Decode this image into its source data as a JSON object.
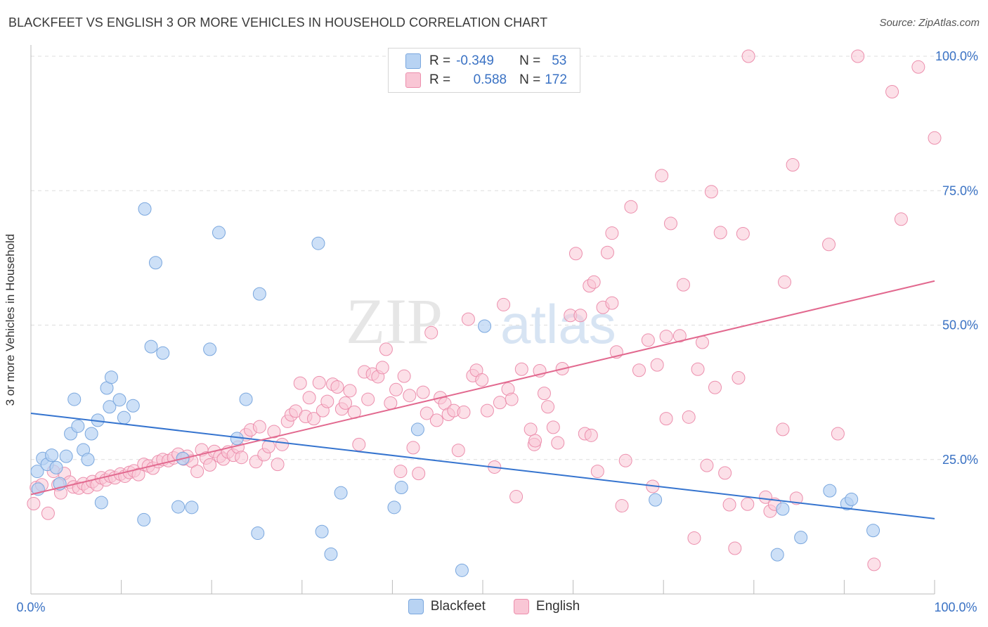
{
  "title": "BLACKFEET VS ENGLISH 3 OR MORE VEHICLES IN HOUSEHOLD CORRELATION CHART",
  "source": "Source: ZipAtlas.com",
  "watermark": {
    "zip": "ZIP",
    "atlas": "atlas"
  },
  "legend_stats": {
    "rows": [
      {
        "r_label": "R =",
        "r_value": "-0.349",
        "n_label": "N =",
        "n_value": "53"
      },
      {
        "r_label": "R =",
        "r_value": "0.588",
        "n_label": "N =",
        "n_value": "172"
      }
    ]
  },
  "colors": {
    "blackfeet_fill": "#b8d3f3",
    "blackfeet_stroke": "#7aa7de",
    "blackfeet_line": "#3574cf",
    "english_fill": "#f9c6d5",
    "english_stroke": "#ec8fad",
    "english_line": "#e2698f",
    "tick_label": "#3a72c4",
    "grid": "#dddddd"
  },
  "chart_data": {
    "type": "scatter",
    "title": "BLACKFEET VS ENGLISH 3 OR MORE VEHICLES IN HOUSEHOLD CORRELATION CHART",
    "xlabel": "",
    "ylabel": "3 or more Vehicles in Household",
    "xlim": [
      0,
      100
    ],
    "ylim": [
      0,
      103
    ],
    "x_tick_labels": [
      "0.0%",
      "100.0%"
    ],
    "y_ticks": [
      25,
      50,
      75,
      100
    ],
    "y_tick_labels": [
      "25.0%",
      "50.0%",
      "75.0%",
      "100.0%"
    ],
    "grid": true,
    "legend_position": "bottom",
    "series": [
      {
        "name": "Blackfeet",
        "trend": {
          "x": [
            0,
            100
          ],
          "y": [
            33.6,
            14.0
          ]
        },
        "points": [
          [
            0.8,
            19.5
          ],
          [
            0.7,
            22.8
          ],
          [
            1.3,
            25.2
          ],
          [
            1.8,
            24.1
          ],
          [
            2.3,
            25.8
          ],
          [
            2.8,
            23.5
          ],
          [
            3.2,
            20.5
          ],
          [
            3.9,
            25.6
          ],
          [
            4.4,
            29.8
          ],
          [
            4.8,
            36.2
          ],
          [
            5.2,
            31.2
          ],
          [
            5.8,
            26.8
          ],
          [
            6.3,
            25.0
          ],
          [
            6.7,
            29.8
          ],
          [
            7.4,
            32.3
          ],
          [
            7.8,
            17.0
          ],
          [
            8.4,
            38.3
          ],
          [
            8.9,
            40.3
          ],
          [
            8.7,
            34.8
          ],
          [
            9.8,
            36.1
          ],
          [
            10.3,
            32.8
          ],
          [
            11.3,
            35.0
          ],
          [
            12.5,
            13.8
          ],
          [
            12.6,
            71.6
          ],
          [
            13.3,
            46.0
          ],
          [
            13.8,
            61.6
          ],
          [
            14.6,
            44.8
          ],
          [
            16.3,
            16.2
          ],
          [
            16.8,
            25.2
          ],
          [
            17.8,
            16.1
          ],
          [
            20.8,
            67.2
          ],
          [
            19.8,
            45.5
          ],
          [
            22.8,
            28.9
          ],
          [
            23.8,
            36.2
          ],
          [
            25.3,
            55.8
          ],
          [
            25.1,
            11.3
          ],
          [
            31.8,
            65.2
          ],
          [
            32.2,
            11.6
          ],
          [
            33.2,
            7.4
          ],
          [
            34.3,
            18.8
          ],
          [
            40.2,
            16.1
          ],
          [
            41.0,
            19.8
          ],
          [
            42.8,
            30.6
          ],
          [
            47.7,
            4.4
          ],
          [
            50.2,
            49.8
          ],
          [
            69.1,
            17.5
          ],
          [
            83.2,
            15.8
          ],
          [
            82.6,
            7.3
          ],
          [
            85.2,
            10.5
          ],
          [
            88.4,
            19.2
          ],
          [
            90.3,
            16.8
          ],
          [
            90.8,
            17.6
          ],
          [
            93.2,
            11.8
          ]
        ]
      },
      {
        "name": "English",
        "trend": {
          "x": [
            0,
            100
          ],
          "y": [
            18.5,
            58.2
          ]
        },
        "points": [
          [
            0.3,
            16.8
          ],
          [
            0.6,
            19.8
          ],
          [
            1.2,
            20.3
          ],
          [
            1.9,
            15.0
          ],
          [
            2.5,
            22.8
          ],
          [
            3.0,
            20.3
          ],
          [
            3.3,
            18.8
          ],
          [
            3.7,
            22.4
          ],
          [
            4.3,
            20.8
          ],
          [
            4.7,
            19.9
          ],
          [
            5.3,
            19.7
          ],
          [
            5.8,
            20.5
          ],
          [
            6.3,
            19.8
          ],
          [
            6.8,
            20.9
          ],
          [
            7.3,
            20.3
          ],
          [
            7.8,
            21.6
          ],
          [
            8.3,
            21.2
          ],
          [
            8.8,
            21.9
          ],
          [
            9.3,
            21.6
          ],
          [
            9.9,
            22.3
          ],
          [
            10.4,
            21.9
          ],
          [
            10.9,
            22.6
          ],
          [
            11.4,
            22.9
          ],
          [
            11.9,
            22.2
          ],
          [
            12.5,
            24.1
          ],
          [
            13.0,
            23.8
          ],
          [
            13.5,
            23.4
          ],
          [
            14.1,
            24.6
          ],
          [
            14.6,
            25.0
          ],
          [
            15.2,
            24.8
          ],
          [
            15.8,
            25.3
          ],
          [
            16.3,
            26.0
          ],
          [
            16.9,
            25.1
          ],
          [
            17.3,
            25.6
          ],
          [
            17.8,
            24.7
          ],
          [
            18.4,
            22.8
          ],
          [
            18.9,
            26.8
          ],
          [
            19.4,
            25.3
          ],
          [
            19.8,
            24.0
          ],
          [
            20.3,
            26.5
          ],
          [
            20.9,
            25.6
          ],
          [
            21.3,
            25.1
          ],
          [
            21.8,
            26.4
          ],
          [
            22.4,
            25.8
          ],
          [
            22.9,
            27.3
          ],
          [
            23.3,
            25.4
          ],
          [
            23.8,
            29.6
          ],
          [
            24.3,
            30.5
          ],
          [
            24.9,
            24.6
          ],
          [
            25.3,
            31.1
          ],
          [
            25.8,
            25.9
          ],
          [
            26.3,
            27.4
          ],
          [
            26.9,
            30.2
          ],
          [
            27.3,
            24.1
          ],
          [
            27.8,
            27.8
          ],
          [
            28.4,
            32.1
          ],
          [
            28.8,
            33.3
          ],
          [
            29.3,
            34.0
          ],
          [
            29.8,
            39.2
          ],
          [
            30.4,
            33.0
          ],
          [
            30.8,
            36.5
          ],
          [
            31.3,
            32.6
          ],
          [
            31.9,
            39.3
          ],
          [
            32.3,
            34.1
          ],
          [
            32.8,
            35.8
          ],
          [
            33.4,
            39.0
          ],
          [
            33.9,
            38.5
          ],
          [
            34.4,
            34.4
          ],
          [
            34.8,
            35.5
          ],
          [
            35.3,
            37.8
          ],
          [
            35.8,
            33.8
          ],
          [
            36.3,
            27.8
          ],
          [
            36.9,
            41.3
          ],
          [
            37.3,
            36.2
          ],
          [
            37.8,
            40.9
          ],
          [
            38.4,
            40.4
          ],
          [
            38.9,
            42.1
          ],
          [
            39.3,
            45.5
          ],
          [
            39.8,
            35.5
          ],
          [
            40.4,
            38.0
          ],
          [
            40.9,
            22.8
          ],
          [
            41.3,
            40.5
          ],
          [
            41.9,
            36.9
          ],
          [
            42.3,
            27.2
          ],
          [
            42.9,
            22.4
          ],
          [
            43.4,
            37.5
          ],
          [
            43.8,
            33.6
          ],
          [
            44.3,
            48.6
          ],
          [
            44.9,
            32.3
          ],
          [
            45.3,
            36.5
          ],
          [
            45.8,
            35.4
          ],
          [
            46.2,
            33.4
          ],
          [
            46.8,
            34.1
          ],
          [
            47.3,
            26.7
          ],
          [
            47.9,
            33.8
          ],
          [
            48.4,
            51.1
          ],
          [
            48.9,
            40.6
          ],
          [
            49.3,
            41.6
          ],
          [
            49.9,
            39.8
          ],
          [
            50.5,
            34.1
          ],
          [
            51.3,
            23.6
          ],
          [
            51.9,
            35.6
          ],
          [
            52.3,
            53.8
          ],
          [
            52.8,
            38.1
          ],
          [
            53.2,
            36.2
          ],
          [
            53.7,
            18.1
          ],
          [
            54.3,
            41.8
          ],
          [
            55.3,
            30.6
          ],
          [
            55.7,
            27.8
          ],
          [
            56.3,
            41.5
          ],
          [
            56.8,
            37.3
          ],
          [
            57.2,
            34.8
          ],
          [
            57.8,
            31.0
          ],
          [
            58.3,
            28.1
          ],
          [
            58.8,
            41.9
          ],
          [
            59.7,
            51.8
          ],
          [
            60.3,
            63.3
          ],
          [
            60.8,
            51.8
          ],
          [
            61.3,
            29.8
          ],
          [
            61.8,
            57.3
          ],
          [
            62.3,
            58.0
          ],
          [
            62.7,
            22.8
          ],
          [
            63.3,
            53.3
          ],
          [
            63.8,
            63.5
          ],
          [
            64.3,
            54.1
          ],
          [
            64.8,
            45.0
          ],
          [
            64.3,
            67.1
          ],
          [
            65.4,
            16.4
          ],
          [
            65.8,
            24.8
          ],
          [
            66.4,
            72.0
          ],
          [
            67.3,
            41.6
          ],
          [
            68.3,
            47.2
          ],
          [
            68.8,
            20.0
          ],
          [
            69.3,
            42.6
          ],
          [
            69.8,
            77.8
          ],
          [
            70.3,
            47.9
          ],
          [
            70.8,
            68.9
          ],
          [
            70.3,
            32.6
          ],
          [
            71.8,
            48.0
          ],
          [
            72.2,
            57.5
          ],
          [
            72.8,
            32.9
          ],
          [
            73.4,
            10.4
          ],
          [
            73.8,
            41.8
          ],
          [
            74.3,
            46.8
          ],
          [
            74.8,
            23.9
          ],
          [
            75.3,
            74.8
          ],
          [
            75.7,
            38.4
          ],
          [
            76.3,
            67.2
          ],
          [
            76.8,
            22.5
          ],
          [
            77.3,
            16.6
          ],
          [
            77.9,
            8.5
          ],
          [
            78.3,
            40.2
          ],
          [
            78.8,
            67.0
          ],
          [
            79.3,
            16.7
          ],
          [
            79.4,
            100.0
          ],
          [
            81.3,
            18.0
          ],
          [
            81.8,
            15.4
          ],
          [
            82.3,
            16.7
          ],
          [
            83.2,
            30.6
          ],
          [
            83.4,
            58.0
          ],
          [
            84.3,
            79.8
          ],
          [
            88.3,
            65.0
          ],
          [
            89.3,
            29.8
          ],
          [
            91.5,
            100.0
          ],
          [
            93.3,
            5.5
          ],
          [
            95.3,
            93.4
          ],
          [
            96.3,
            69.7
          ],
          [
            98.2,
            98.0
          ],
          [
            100.0,
            84.8
          ],
          [
            84.7,
            17.8
          ],
          [
            55.8,
            28.5
          ],
          [
            62.0,
            29.5
          ]
        ]
      }
    ]
  }
}
